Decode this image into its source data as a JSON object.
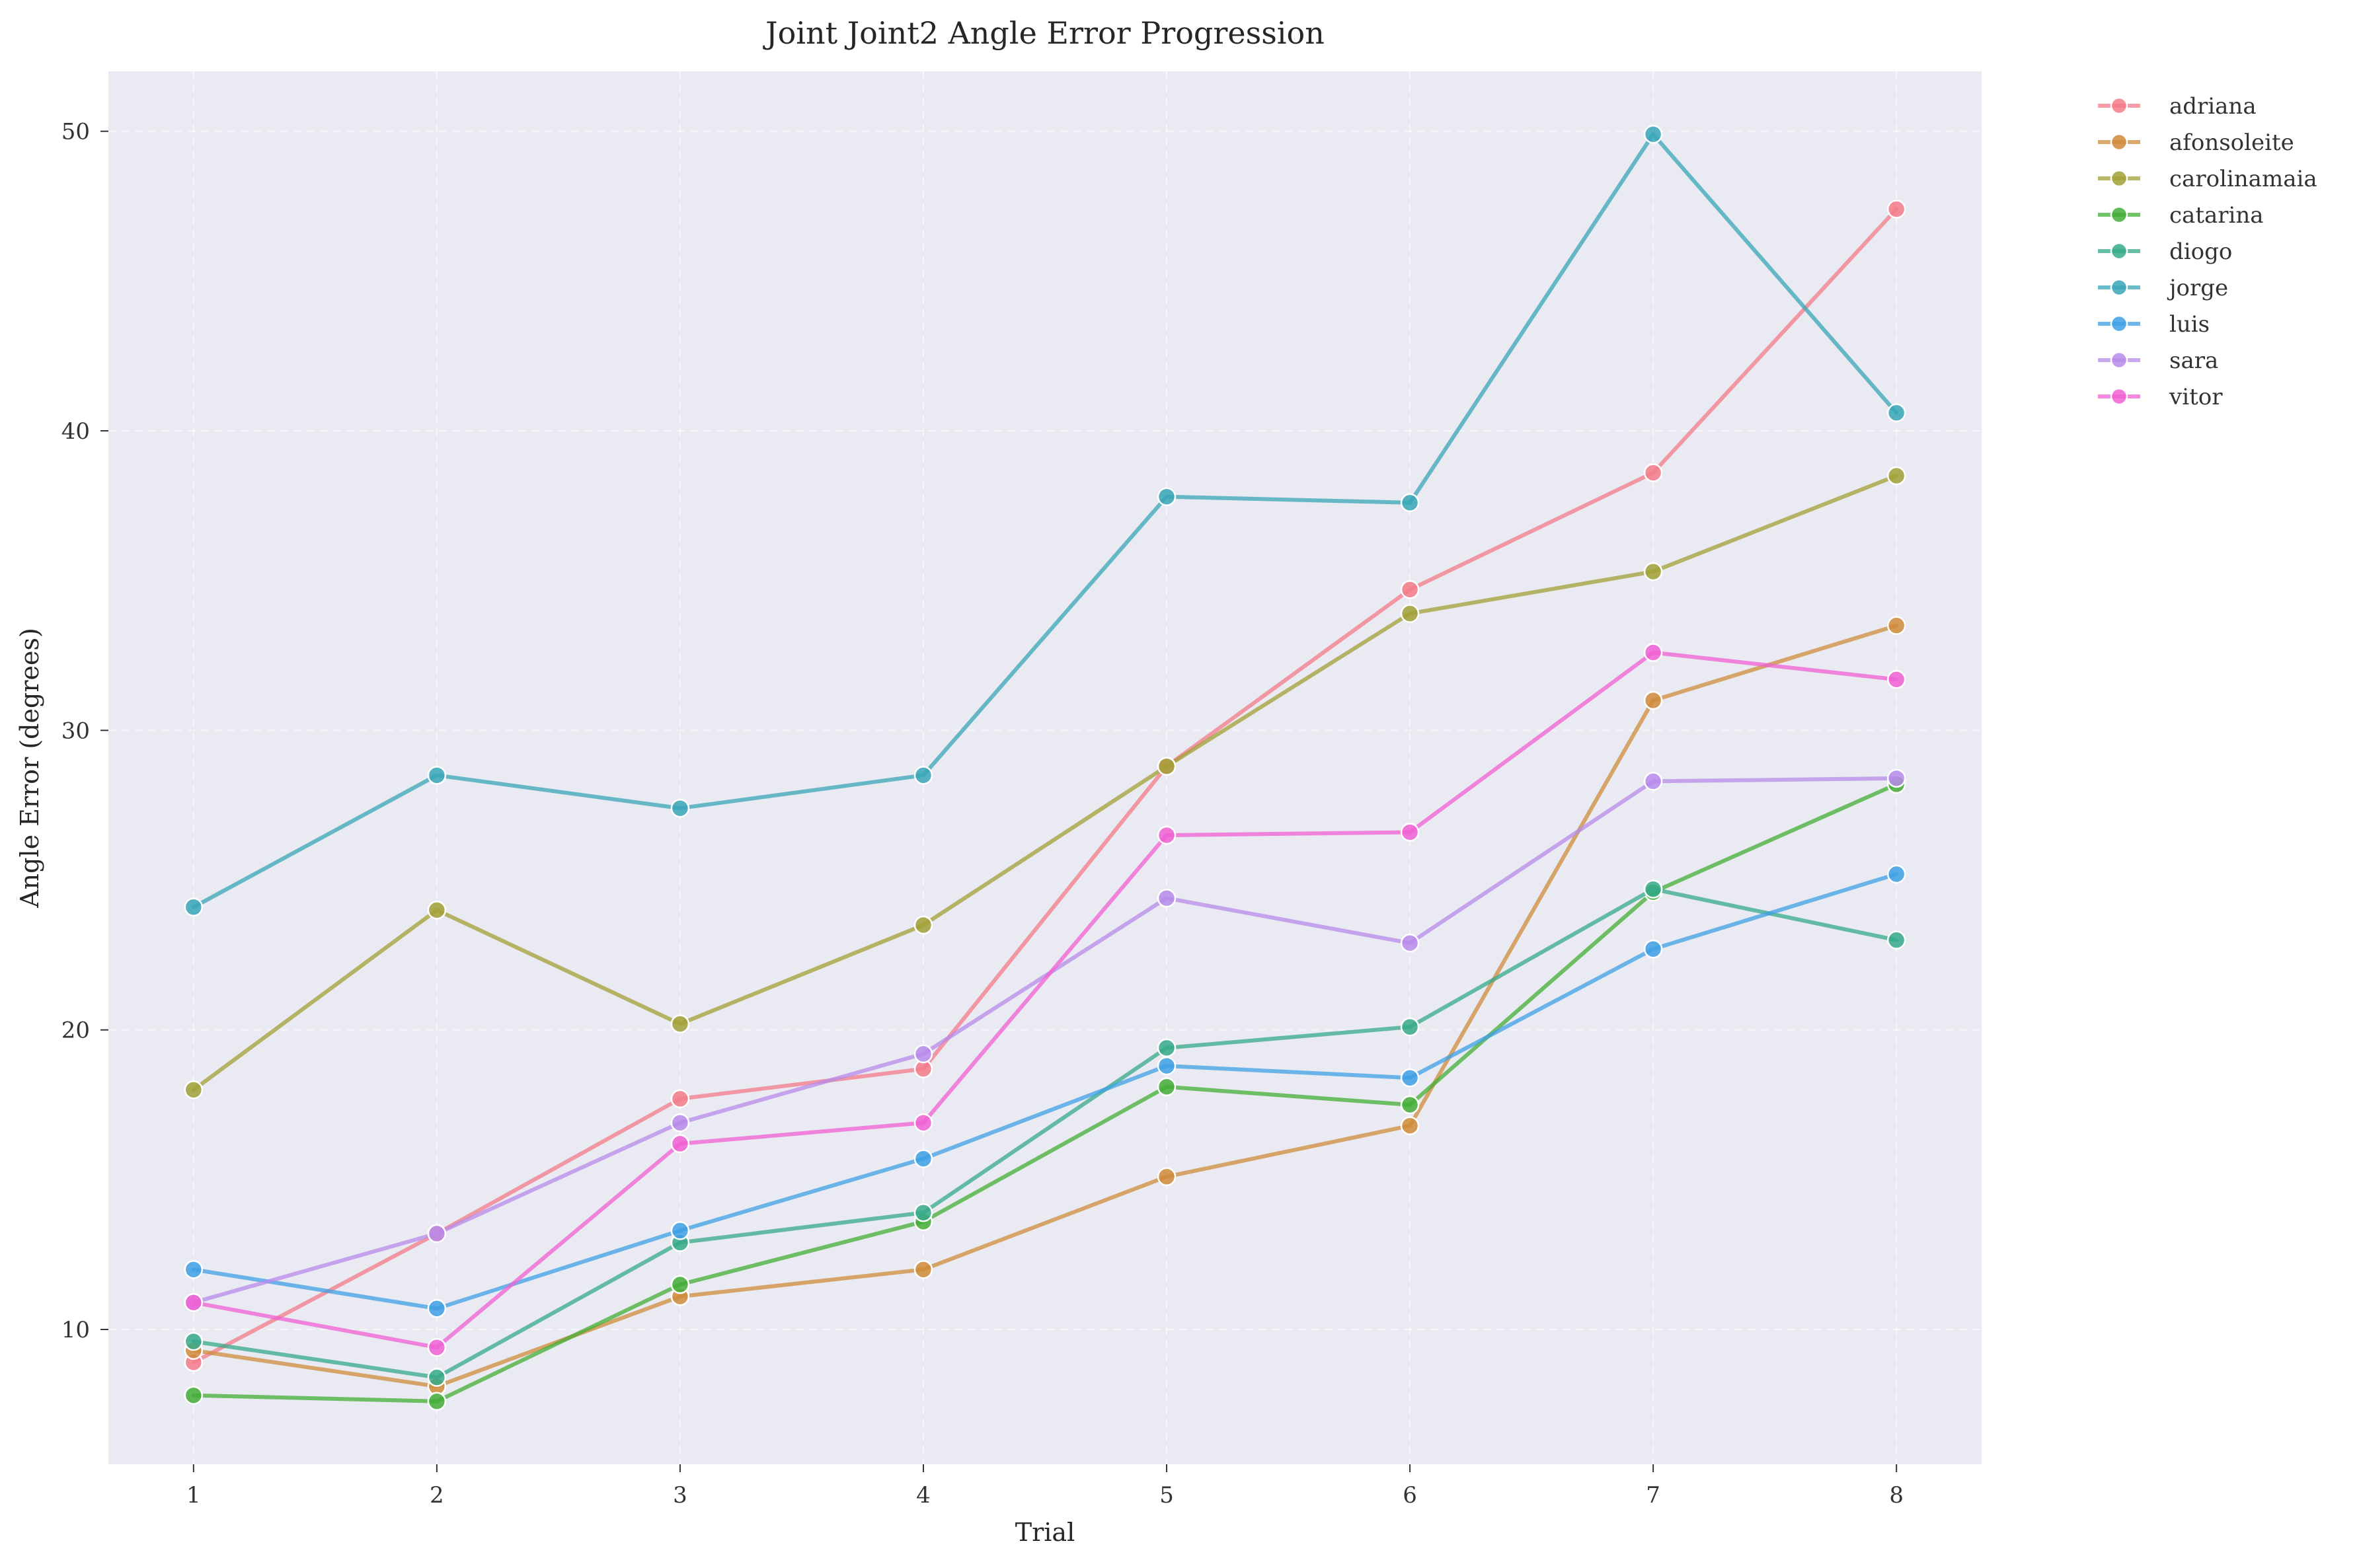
{
  "chart_data": {
    "type": "line",
    "title": "Joint Joint2 Angle Error Progression",
    "xlabel": "Trial",
    "ylabel": "Angle Error (degrees)",
    "x": [
      1,
      2,
      3,
      4,
      5,
      6,
      7,
      8
    ],
    "xlim": [
      0.65,
      8.35
    ],
    "ylim": [
      5.5,
      52
    ],
    "yticks": [
      10,
      20,
      30,
      40,
      50
    ],
    "grid": true,
    "legend_position": "outside-right",
    "background_color": "#eaeaf2",
    "series": [
      {
        "name": "adriana",
        "color": "#f37b8a",
        "values": [
          8.9,
          13.2,
          17.7,
          18.7,
          28.8,
          34.7,
          38.6,
          47.4
        ]
      },
      {
        "name": "afonsoleite",
        "color": "#cf8b3a",
        "values": [
          9.3,
          8.1,
          11.1,
          12.0,
          15.1,
          16.8,
          31.0,
          33.5
        ]
      },
      {
        "name": "carolinamaia",
        "color": "#a2a036",
        "values": [
          18.0,
          24.0,
          20.2,
          23.5,
          28.8,
          33.9,
          35.3,
          38.5
        ]
      },
      {
        "name": "catarina",
        "color": "#43ad36",
        "values": [
          7.8,
          7.6,
          11.5,
          13.6,
          18.1,
          17.5,
          24.6,
          28.2
        ]
      },
      {
        "name": "diogo",
        "color": "#36a98a",
        "values": [
          9.6,
          8.4,
          12.9,
          13.9,
          19.4,
          20.1,
          24.7,
          23.0
        ]
      },
      {
        "name": "jorge",
        "color": "#38a6b7",
        "values": [
          24.1,
          28.5,
          27.4,
          28.5,
          37.8,
          37.6,
          49.9,
          40.6
        ]
      },
      {
        "name": "luis",
        "color": "#3ea0e4",
        "values": [
          12.0,
          10.7,
          13.3,
          15.7,
          18.8,
          18.4,
          22.7,
          25.2
        ]
      },
      {
        "name": "sara",
        "color": "#b78bea",
        "values": [
          10.9,
          13.2,
          16.9,
          19.2,
          24.4,
          22.9,
          28.3,
          28.4
        ]
      },
      {
        "name": "vitor",
        "color": "#f060d3",
        "values": [
          10.9,
          9.4,
          16.2,
          16.9,
          26.5,
          26.6,
          32.6,
          31.7
        ]
      }
    ]
  }
}
